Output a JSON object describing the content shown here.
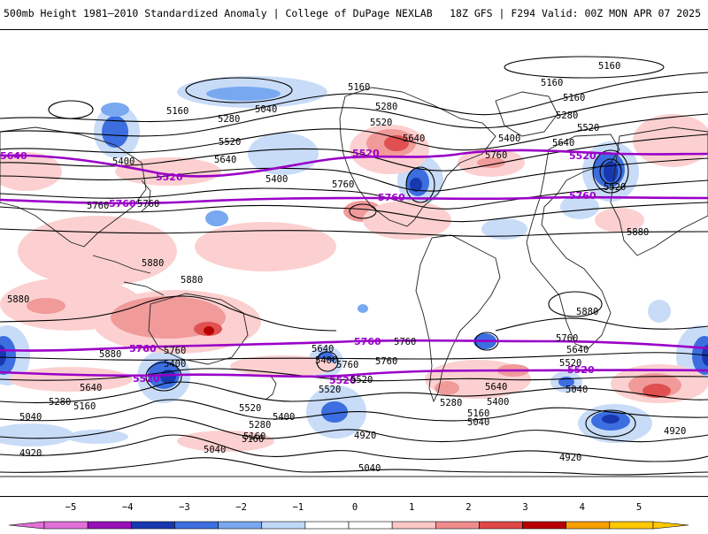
{
  "header": {
    "title": "500mb Height 1981–2010 Standardized Anomaly | College of DuPage NEXLAB",
    "run": "18Z GFS | F294 Valid: 00Z MON APR 07 2025"
  },
  "contour_labels": {
    "black": [
      "5160",
      "5160",
      "5160",
      "5160",
      "5040",
      "5280",
      "5280",
      "5520",
      "5520",
      "5400",
      "5640",
      "5400",
      "5640",
      "5760",
      "5520",
      "5400",
      "5760",
      "5280",
      "5640",
      "5160",
      "5520",
      "5760",
      "5880",
      "5880",
      "5880",
      "5880",
      "5880",
      "5760",
      "5760",
      "5640",
      "5400",
      "5640",
      "5280",
      "5160",
      "5040",
      "4920",
      "5520",
      "5280",
      "5160",
      "5040",
      "5640",
      "5400",
      "5400",
      "5760",
      "5640",
      "5520",
      "5280",
      "5160",
      "5040",
      "4920",
      "5040",
      "5760",
      "5520",
      "5040",
      "4920",
      "5760",
      "5760",
      "5520",
      "5400",
      "5160",
      "4920",
      "5880"
    ],
    "purple": [
      "5640",
      "5520",
      "5760",
      "5520",
      "5760",
      "5520",
      "5760",
      "5760",
      "5520",
      "5760",
      "5520",
      "5520"
    ]
  },
  "colorbar": {
    "ticks": [
      "−5",
      "−4",
      "−3",
      "−2",
      "−1",
      "0",
      "1",
      "2",
      "3",
      "4",
      "5"
    ],
    "colors": [
      "#e070d8",
      "#9810b8",
      "#1838b0",
      "#3c6ee0",
      "#78a8f0",
      "#c0d8f8",
      "#ffffff",
      "#ffffff",
      "#fcc8c8",
      "#f08c8c",
      "#e04848",
      "#b80000",
      "#f8a000",
      "#ffc800"
    ]
  },
  "shading_colors": {
    "neg_light": "#c8dcf8",
    "neg_mid": "#78a8f0",
    "neg_dark": "#3c6ee0",
    "neg_deep": "#1838b0",
    "pos_light": "#fcd0d0",
    "pos_mid": "#f09a9a",
    "pos_dark": "#e05050",
    "pos_deep": "#b80000",
    "contour": "#000000",
    "purple_contour": "#9a00c8",
    "coast": "#222222"
  }
}
